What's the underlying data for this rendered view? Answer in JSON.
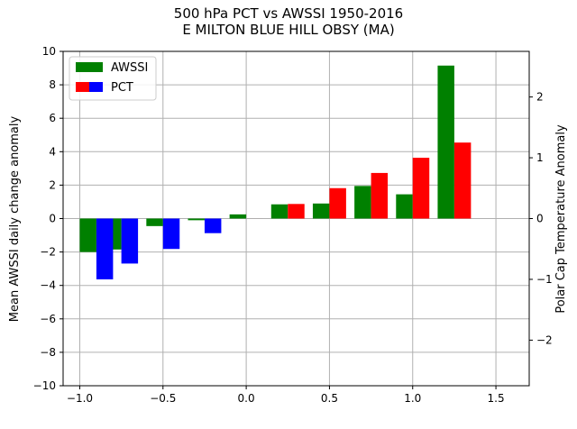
{
  "chart_data": {
    "type": "bar",
    "title": "500 hPa PCT vs AWSSI 1950-2016",
    "subtitle": "E MILTON BLUE HILL OBSY (MA)",
    "ylabel": "Mean AWSSI daily change anomaly",
    "y2label": "Polar Cap Temperature Anomaly",
    "xlim": [
      -1.1,
      1.7
    ],
    "ylim": [
      -10,
      10
    ],
    "y2lim": [
      -2.75,
      2.75
    ],
    "x_ticks": [
      -1.0,
      -0.5,
      0.0,
      0.5,
      1.0,
      1.5
    ],
    "x_tick_labels": [
      "−1.0",
      "−0.5",
      "0.0",
      "0.5",
      "1.0",
      "1.5"
    ],
    "y_ticks": [
      -10,
      -8,
      -6,
      -4,
      -2,
      0,
      2,
      4,
      6,
      8,
      10
    ],
    "y_tick_labels": [
      "−10",
      "−8",
      "−6",
      "−4",
      "−2",
      "0",
      "2",
      "4",
      "6",
      "8",
      "10"
    ],
    "y2_ticks": [
      -2,
      -1,
      0,
      1,
      2
    ],
    "y2_tick_labels": [
      "−2",
      "−1",
      "0",
      "1",
      "2"
    ],
    "grid": true,
    "legend_position": "top-left",
    "bar_width": 0.1,
    "series": [
      {
        "name": "AWSSI",
        "axis": "left",
        "color": "#008000",
        "x": [
          -0.9,
          -0.75,
          -0.5,
          -0.25,
          0.0,
          0.25,
          0.5,
          0.75,
          1.0,
          1.25
        ],
        "values": [
          -2.0,
          -1.85,
          -0.45,
          -0.1,
          0.25,
          0.85,
          0.9,
          1.95,
          1.45,
          9.15
        ],
        "x_offset": -0.05
      },
      {
        "name": "PCT",
        "axis": "right",
        "colors": {
          "positive": "#ff0000",
          "negative": "#0000ff"
        },
        "x": [
          -0.9,
          -0.75,
          -0.5,
          -0.25,
          0.0,
          0.25,
          0.5,
          0.75,
          1.0,
          1.25
        ],
        "values": [
          -1.0,
          -0.74,
          -0.5,
          -0.24,
          0.0,
          0.24,
          0.5,
          0.75,
          1.0,
          1.25
        ],
        "x_offset": 0.05
      }
    ]
  }
}
